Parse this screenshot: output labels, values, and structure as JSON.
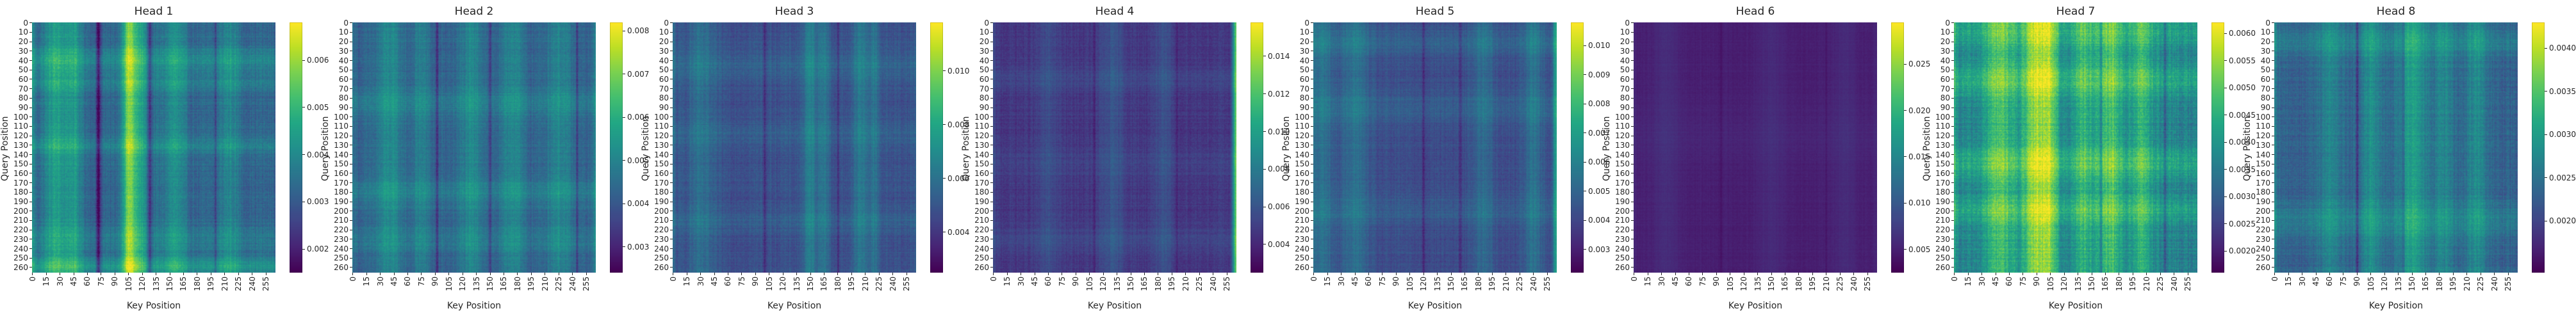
{
  "chart_data": {
    "type": "heatmap",
    "subplots": [
      {
        "title": "Head 1",
        "colorbar_ticks": [
          0.002,
          0.003,
          0.004,
          0.005,
          0.006
        ],
        "colorbar_tick_labels": [
          "0.002",
          "0.003",
          "0.004",
          "0.005",
          "0.006"
        ],
        "vmin": 0.0015,
        "vmax": 0.0068,
        "pattern": {
          "base": 0.0032,
          "noise": 0.0005,
          "bands": [
            [
              25,
              9,
              0.0012
            ],
            [
              45,
              7,
              0.001
            ],
            [
              105,
              5,
              0.0018
            ],
            [
              115,
              10,
              0.0013
            ],
            [
              155,
              8,
              0.0009
            ],
            [
              215,
              8,
              0.0007
            ]
          ],
          "row_bands": [
            [
              40,
              10,
              0.0007
            ],
            [
              65,
              6,
              0.0005
            ],
            [
              130,
              6,
              0.0006
            ],
            [
              230,
              10,
              0.0004
            ],
            [
              258,
              6,
              0.001
            ]
          ],
          "dark_cols": [
            [
              72,
              2,
              0.0016
            ],
            [
              128,
              2,
              0.0014
            ],
            [
              200,
              1,
              0.0008
            ]
          ],
          "left_edge": 0.0008,
          "right_edge": 0
        }
      },
      {
        "title": "Head 2",
        "colorbar_ticks": [
          0.003,
          0.004,
          0.005,
          0.006,
          0.007,
          0.008
        ],
        "colorbar_tick_labels": [
          "0.003",
          "0.004",
          "0.005",
          "0.006",
          "0.007",
          "0.008"
        ],
        "vmin": 0.0024,
        "vmax": 0.0082,
        "pattern": {
          "base": 0.0042,
          "noise": 0.0005,
          "bands": [
            [
              40,
              10,
              0.0009
            ],
            [
              75,
              6,
              0.0007
            ],
            [
              130,
              10,
              0.0008
            ],
            [
              175,
              8,
              0.0009
            ],
            [
              225,
              10,
              0.0008
            ]
          ],
          "row_bands": [
            [
              85,
              10,
              0.0005
            ],
            [
              180,
              10,
              0.0005
            ],
            [
              230,
              8,
              0.0004
            ]
          ],
          "dark_cols": [
            [
              92,
              1,
              0.0012
            ],
            [
              150,
              1,
              0.001
            ],
            [
              245,
              1,
              0.0009
            ]
          ],
          "left_edge": 0.0004,
          "right_edge": 0.0006
        }
      },
      {
        "title": "Head 3",
        "colorbar_ticks": [
          0.004,
          0.006,
          0.008,
          0.01
        ],
        "colorbar_tick_labels": [
          "0.004",
          "0.006",
          "0.008",
          "0.010"
        ],
        "vmin": 0.0025,
        "vmax": 0.0118,
        "pattern": {
          "base": 0.0048,
          "noise": 0.0007,
          "bands": [
            [
              30,
              10,
              0.001
            ],
            [
              150,
              6,
              0.0016
            ],
            [
              165,
              4,
              0.0014
            ],
            [
              205,
              6,
              0.0014
            ],
            [
              220,
              4,
              0.0012
            ]
          ],
          "row_bands": [
            [
              45,
              12,
              0.0006
            ],
            [
              120,
              10,
              0.0005
            ],
            [
              210,
              8,
              0.0005
            ]
          ],
          "dark_cols": [
            [
              100,
              1,
              0.0012
            ],
            [
              180,
              1,
              0.001
            ]
          ],
          "left_edge": 0.0008,
          "right_edge": 0.0004
        }
      },
      {
        "title": "Head 4",
        "colorbar_ticks": [
          0.004,
          0.006,
          0.008,
          0.01,
          0.012,
          0.014
        ],
        "colorbar_tick_labels": [
          "0.004",
          "0.006",
          "0.008",
          "0.010",
          "0.012",
          "0.014"
        ],
        "vmin": 0.0025,
        "vmax": 0.0158,
        "pattern": {
          "base": 0.0046,
          "noise": 0.0008,
          "bands": [
            [
              60,
              8,
              0.0009
            ],
            [
              130,
              10,
              0.0012
            ],
            [
              185,
              8,
              0.001
            ]
          ],
          "row_bands": [
            [
              60,
              10,
              0.0006
            ],
            [
              150,
              10,
              0.0005
            ],
            [
              230,
              12,
              0.0006
            ]
          ],
          "dark_cols": [
            [
              110,
              1,
              0.0012
            ],
            [
              200,
              1,
              0.0011
            ]
          ],
          "left_edge": 0.0006,
          "right_edge": 0.008
        }
      },
      {
        "title": "Head 5",
        "colorbar_ticks": [
          0.003,
          0.004,
          0.005,
          0.006,
          0.007,
          0.008,
          0.009,
          0.01
        ],
        "colorbar_tick_labels": [
          "0.003",
          "0.004",
          "0.005",
          "0.006",
          "0.007",
          "0.008",
          "0.009",
          "0.010"
        ],
        "vmin": 0.0022,
        "vmax": 0.0108,
        "pattern": {
          "base": 0.0042,
          "noise": 0.0006,
          "bands": [
            [
              10,
              8,
              0.0012
            ],
            [
              45,
              10,
              0.0012
            ],
            [
              185,
              8,
              0.001
            ],
            [
              240,
              8,
              0.0012
            ]
          ],
          "row_bands": [
            [
              20,
              10,
              0.0007
            ],
            [
              90,
              12,
              0.0006
            ],
            [
              200,
              10,
              0.0005
            ]
          ],
          "dark_cols": [
            [
              120,
              1,
              0.001
            ],
            [
              160,
              1,
              0.001
            ]
          ],
          "left_edge": 0.0006,
          "right_edge": 0.0028
        }
      },
      {
        "title": "Head 6",
        "colorbar_ticks": [
          0.005,
          0.01,
          0.015,
          0.02,
          0.025
        ],
        "colorbar_tick_labels": [
          "0.005",
          "0.010",
          "0.015",
          "0.020",
          "0.025"
        ],
        "vmin": 0.0025,
        "vmax": 0.0295,
        "pattern": {
          "base": 0.0048,
          "noise": 0.0006,
          "bands": [
            [
              35,
              10,
              0.0012
            ],
            [
              150,
              10,
              0.001
            ],
            [
              230,
              10,
              0.0009
            ]
          ],
          "row_bands": [
            [
              120,
              20,
              0.0005
            ]
          ],
          "dark_cols": [
            [
              95,
              1,
              0.0008
            ],
            [
              210,
              1,
              0.0008
            ]
          ],
          "left_edge": 0.0006,
          "right_edge": 0.0006
        }
      },
      {
        "title": "Head 7",
        "colorbar_ticks": [
          0.002,
          0.0025,
          0.003,
          0.0035,
          0.004,
          0.0045,
          0.005,
          0.0055,
          0.006
        ],
        "colorbar_tick_labels": [
          "0.0020",
          "0.0025",
          "0.0030",
          "0.0035",
          "0.0040",
          "0.0045",
          "0.0050",
          "0.0055",
          "0.0060"
        ],
        "vmin": 0.0016,
        "vmax": 0.0062,
        "pattern": {
          "base": 0.0036,
          "noise": 0.0006,
          "bands": [
            [
              50,
              12,
              0.0012
            ],
            [
              90,
              10,
              0.0018
            ],
            [
              105,
              6,
              0.0012
            ],
            [
              140,
              8,
              0.0009
            ],
            [
              170,
              10,
              0.0012
            ],
            [
              205,
              8,
              0.001
            ]
          ],
          "row_bands": [
            [
              10,
              10,
              0.0006
            ],
            [
              60,
              12,
              0.0007
            ],
            [
              150,
              12,
              0.0007
            ],
            [
              200,
              10,
              0.0006
            ]
          ],
          "dark_cols": [
            [
              160,
              1,
              0.001
            ],
            [
              230,
              1,
              0.0009
            ]
          ],
          "left_edge": 0.0004,
          "right_edge": 0
        }
      },
      {
        "title": "Head 8",
        "colorbar_ticks": [
          0.002,
          0.0025,
          0.003,
          0.0035,
          0.004
        ],
        "colorbar_tick_labels": [
          "0.0020",
          "0.0025",
          "0.0030",
          "0.0035",
          "0.0040"
        ],
        "vmin": 0.0014,
        "vmax": 0.0043,
        "pattern": {
          "base": 0.0023,
          "noise": 0.00028,
          "bands": [
            [
              60,
              10,
              0.0004
            ],
            [
              105,
              8,
              0.0005
            ],
            [
              150,
              12,
              0.0007
            ],
            [
              185,
              8,
              0.0004
            ],
            [
              220,
              8,
              0.0005
            ]
          ],
          "row_bands": [
            [
              20,
              10,
              0.0003
            ],
            [
              210,
              12,
              0.0003
            ]
          ],
          "dark_cols": [
            [
              90,
              1,
              0.0006
            ],
            [
              140,
              1,
              0.0005
            ]
          ],
          "left_edge": 0.0003,
          "right_edge": 0
        }
      }
    ],
    "x_axis": {
      "label": "Key Position",
      "tick_labels": [
        "0",
        "15",
        "30",
        "45",
        "60",
        "75",
        "90",
        "105",
        "120",
        "135",
        "150",
        "165",
        "180",
        "195",
        "210",
        "225",
        "240",
        "255"
      ],
      "range": [
        0,
        265
      ]
    },
    "y_axis": {
      "label": "Query Position",
      "tick_labels": [
        "0",
        "10",
        "20",
        "30",
        "40",
        "50",
        "60",
        "70",
        "80",
        "90",
        "100",
        "110",
        "120",
        "130",
        "140",
        "150",
        "160",
        "170",
        "180",
        "190",
        "200",
        "210",
        "220",
        "230",
        "240",
        "250",
        "260"
      ],
      "range": [
        0,
        265
      ]
    },
    "colormap": "viridis",
    "grid": false
  }
}
